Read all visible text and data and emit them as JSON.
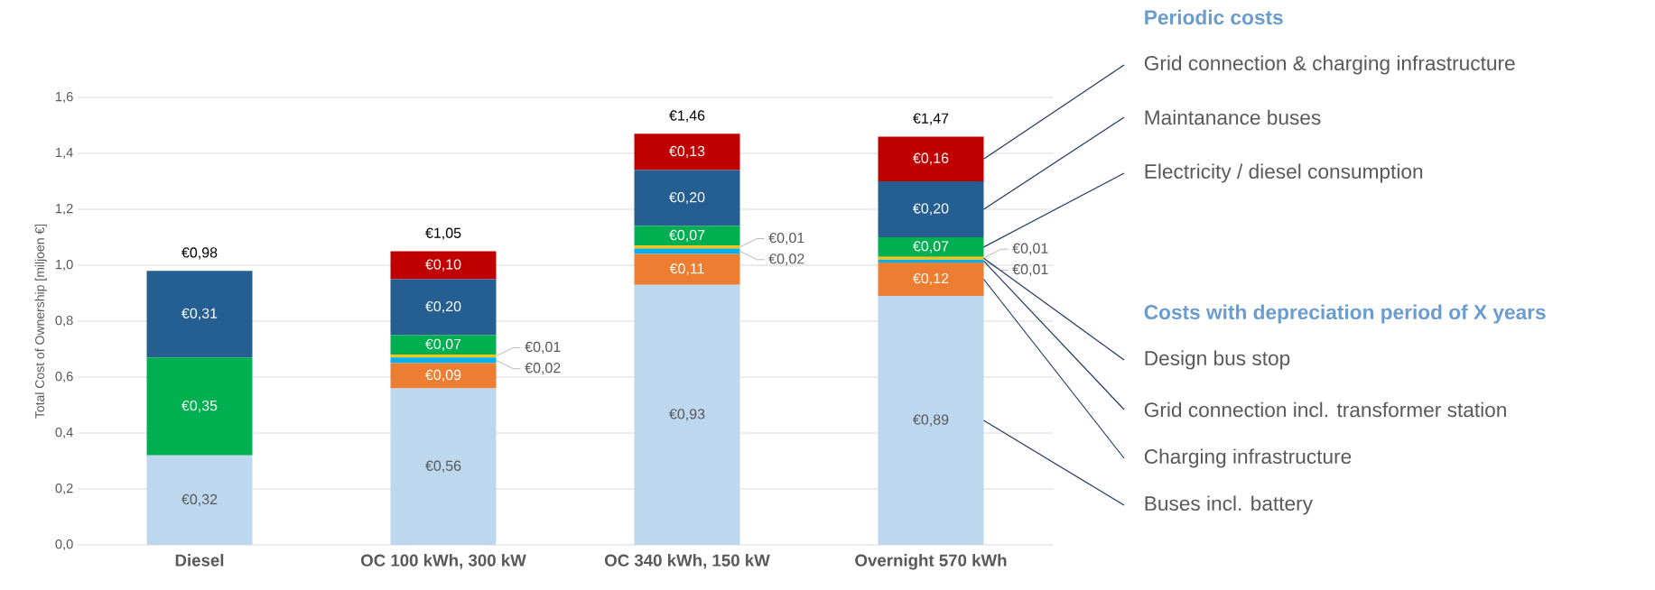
{
  "chart_data": {
    "type": "bar",
    "stacked": true,
    "ylabel": "Total Cost of Ownership [miljoen €]",
    "categories": [
      "Diesel",
      "OC 100 kWh, 300 kW",
      "OC 340 kWh, 150 kW",
      "Overnight 570 kWh"
    ],
    "ylim": [
      0,
      1.6
    ],
    "yticks": [
      {
        "value": 0,
        "label": "0,0"
      },
      {
        "value": 0.2,
        "label": "0,2"
      },
      {
        "value": 0.4,
        "label": "0,4"
      },
      {
        "value": 0.6,
        "label": "0,6"
      },
      {
        "value": 0.8,
        "label": "0,8"
      },
      {
        "value": 1.0,
        "label": "1,0"
      },
      {
        "value": 1.2,
        "label": "1,2"
      },
      {
        "value": 1.4,
        "label": "1,4"
      },
      {
        "value": 1.6,
        "label": "1,6"
      }
    ],
    "grid": "y",
    "legend": "right",
    "totals": [
      "€0,98",
      "€1,05",
      "€1,46",
      "€1,47"
    ],
    "annotations": [
      "Periodic costs",
      "Costs with depreciation period of X years"
    ],
    "series": [
      {
        "name": "Buses incl. battery",
        "color": "#bdd7ee",
        "values": [
          0.32,
          0.56,
          0.93,
          0.89
        ],
        "value_labels": [
          "€0,32",
          "€0,56",
          "€0,93",
          "€0,89"
        ]
      },
      {
        "name": "Charging infrastructure",
        "color": "#ed7d31",
        "values": [
          null,
          0.09,
          0.11,
          0.12
        ],
        "value_labels": [
          null,
          "€0,09",
          "€0,11",
          "€0,12"
        ]
      },
      {
        "name": "Grid connection incl. transformer station",
        "color": "#00b0f0",
        "values": [
          null,
          0.02,
          0.02,
          0.01
        ],
        "value_labels": [
          null,
          "€0,02",
          "€0,02",
          "€0,01"
        ]
      },
      {
        "name": "Design bus stop",
        "color": "#ffc000",
        "values": [
          null,
          0.01,
          0.01,
          0.01
        ],
        "value_labels": [
          null,
          "€0,01",
          "€0,01",
          "€0,01"
        ]
      },
      {
        "name": "Electricity / diesel consumption",
        "color": "#00b050",
        "values": [
          0.35,
          0.07,
          0.07,
          0.07
        ],
        "value_labels": [
          "€0,35",
          "€0,07",
          "€0,07",
          "€0,07"
        ]
      },
      {
        "name": "Maintanance buses",
        "color": "#255e91",
        "values": [
          0.31,
          0.2,
          0.2,
          0.2
        ],
        "value_labels": [
          "€0,31",
          "€0,20",
          "€0,20",
          "€0,20"
        ]
      },
      {
        "name": "Grid connection & charging infrastructure",
        "color": "#c00000",
        "values": [
          null,
          0.1,
          0.13,
          0.16
        ],
        "value_labels": [
          null,
          "€0,10",
          "€0,13",
          "€0,16"
        ]
      }
    ]
  }
}
